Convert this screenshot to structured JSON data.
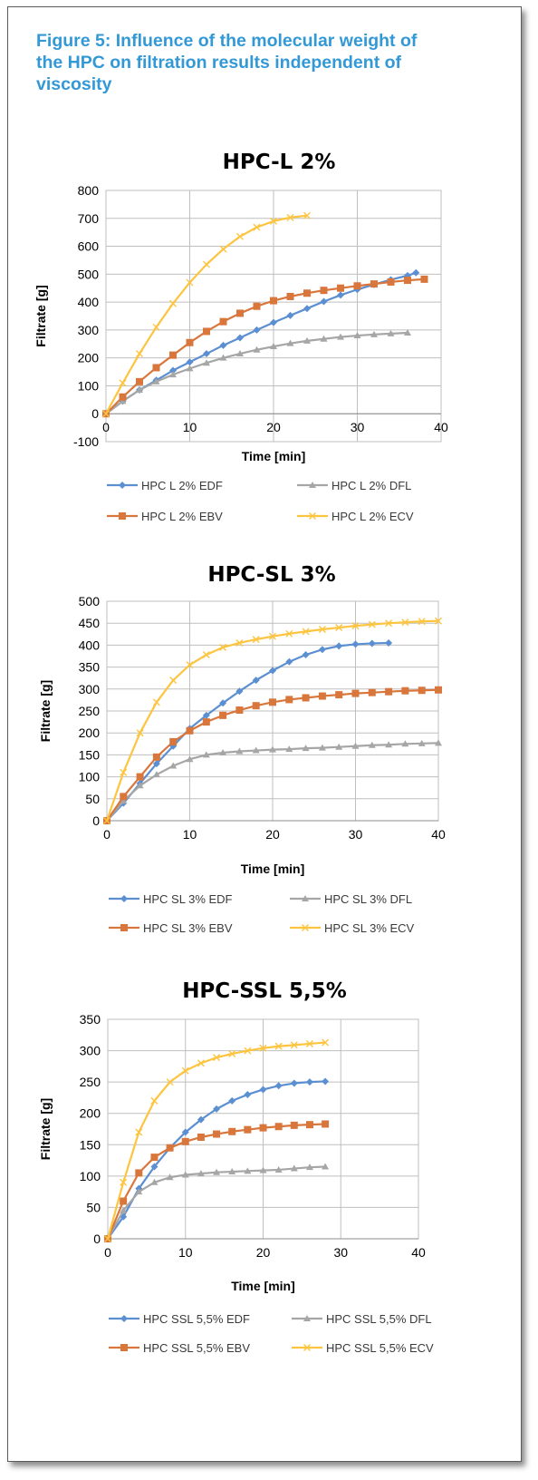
{
  "figure_title": "Figure 5: Influence of the molecular weight of the HPC on filtration results independent of viscosity",
  "colors": {
    "title": "#3399d6",
    "EDF": "#5b8fd2",
    "DFL": "#a6a6a6",
    "EBV": "#d9763c",
    "ECV": "#fdc43f"
  },
  "chart_data": [
    {
      "type": "line",
      "title": "HPC-L 2%",
      "xlabel": "Time [min]",
      "ylabel": "Filtrate [g]",
      "xlim": [
        0,
        40
      ],
      "ylim": [
        -100,
        800
      ],
      "xticks": [
        0,
        10,
        20,
        30,
        40
      ],
      "yticks": [
        -100,
        0,
        100,
        200,
        300,
        400,
        500,
        600,
        700,
        800
      ],
      "grid": true,
      "legend_position": "bottom",
      "series": [
        {
          "name": "HPC L 2% EDF",
          "marker": "diamond",
          "color": "#5b8fd2",
          "x": [
            0,
            2,
            4,
            6,
            8,
            10,
            12,
            14,
            16,
            18,
            20,
            22,
            24,
            26,
            28,
            30,
            32,
            34,
            36,
            37
          ],
          "y": [
            0,
            45,
            85,
            120,
            155,
            185,
            215,
            245,
            272,
            300,
            327,
            352,
            377,
            402,
            425,
            445,
            463,
            480,
            495,
            505
          ]
        },
        {
          "name": "HPC L 2% DFL",
          "marker": "triangle",
          "color": "#a6a6a6",
          "x": [
            0,
            2,
            4,
            6,
            8,
            10,
            12,
            14,
            16,
            18,
            20,
            22,
            24,
            26,
            28,
            30,
            32,
            34,
            36
          ],
          "y": [
            0,
            45,
            85,
            115,
            140,
            162,
            182,
            200,
            215,
            229,
            241,
            252,
            261,
            268,
            275,
            280,
            284,
            287,
            290
          ]
        },
        {
          "name": "HPC L 2% EBV",
          "marker": "square",
          "color": "#d9763c",
          "x": [
            0,
            2,
            4,
            6,
            8,
            10,
            12,
            14,
            16,
            18,
            20,
            22,
            24,
            26,
            28,
            30,
            32,
            34,
            36,
            38
          ],
          "y": [
            0,
            60,
            115,
            165,
            210,
            255,
            295,
            330,
            360,
            385,
            405,
            420,
            432,
            442,
            450,
            458,
            465,
            472,
            478,
            482
          ]
        },
        {
          "name": "HPC L 2% ECV",
          "marker": "x",
          "color": "#fdc43f",
          "x": [
            0,
            2,
            4,
            6,
            8,
            10,
            12,
            14,
            16,
            18,
            20,
            22,
            24
          ],
          "y": [
            0,
            110,
            215,
            310,
            395,
            470,
            535,
            590,
            635,
            668,
            690,
            703,
            710
          ]
        }
      ]
    },
    {
      "type": "line",
      "title": "HPC-SL 3%",
      "xlabel": "Time [min]",
      "ylabel": "Filtrate [g]",
      "xlim": [
        0,
        40
      ],
      "ylim": [
        0,
        500
      ],
      "xticks": [
        0,
        10,
        20,
        30,
        40
      ],
      "yticks": [
        0,
        50,
        100,
        150,
        200,
        250,
        300,
        350,
        400,
        450,
        500
      ],
      "grid": true,
      "legend_position": "bottom",
      "series": [
        {
          "name": "HPC SL 3% EDF",
          "marker": "diamond",
          "color": "#5b8fd2",
          "x": [
            0,
            2,
            4,
            6,
            8,
            10,
            12,
            14,
            16,
            18,
            20,
            22,
            24,
            26,
            28,
            30,
            32,
            34
          ],
          "y": [
            0,
            40,
            85,
            130,
            170,
            210,
            240,
            268,
            295,
            320,
            342,
            362,
            378,
            390,
            398,
            402,
            404,
            405
          ]
        },
        {
          "name": "HPC SL 3% DFL",
          "marker": "triangle",
          "color": "#a6a6a6",
          "x": [
            0,
            2,
            4,
            6,
            8,
            10,
            12,
            14,
            16,
            18,
            20,
            22,
            24,
            26,
            28,
            30,
            32,
            34,
            36,
            38,
            40
          ],
          "y": [
            0,
            45,
            80,
            105,
            125,
            140,
            150,
            155,
            158,
            160,
            162,
            163,
            165,
            166,
            168,
            170,
            172,
            173,
            175,
            176,
            177
          ]
        },
        {
          "name": "HPC SL 3% EBV",
          "marker": "square",
          "color": "#d9763c",
          "x": [
            0,
            2,
            4,
            6,
            8,
            10,
            12,
            14,
            16,
            18,
            20,
            22,
            24,
            26,
            28,
            30,
            32,
            34,
            36,
            38,
            40
          ],
          "y": [
            0,
            55,
            100,
            145,
            180,
            205,
            225,
            240,
            252,
            262,
            270,
            276,
            280,
            284,
            287,
            290,
            292,
            294,
            296,
            297,
            298
          ]
        },
        {
          "name": "HPC SL 3% ECV",
          "marker": "x",
          "color": "#fdc43f",
          "x": [
            0,
            2,
            4,
            6,
            8,
            10,
            12,
            14,
            16,
            18,
            20,
            22,
            24,
            26,
            28,
            30,
            32,
            34,
            36,
            38,
            40
          ],
          "y": [
            0,
            110,
            200,
            270,
            320,
            355,
            378,
            395,
            405,
            413,
            420,
            426,
            431,
            436,
            440,
            444,
            447,
            450,
            452,
            454,
            455
          ]
        }
      ]
    },
    {
      "type": "line",
      "title": "HPC-SSL 5,5%",
      "xlabel": "Time [min]",
      "ylabel": "Filtrate [g]",
      "xlim": [
        0,
        40
      ],
      "ylim": [
        0,
        350
      ],
      "xticks": [
        0,
        10,
        20,
        30,
        40
      ],
      "yticks": [
        0,
        50,
        100,
        150,
        200,
        250,
        300,
        350
      ],
      "grid": true,
      "legend_position": "bottom",
      "series": [
        {
          "name": "HPC SSL 5,5% EDF",
          "marker": "diamond",
          "color": "#5b8fd2",
          "x": [
            0,
            2,
            4,
            6,
            8,
            10,
            12,
            14,
            16,
            18,
            20,
            22,
            24,
            26,
            28
          ],
          "y": [
            0,
            35,
            80,
            115,
            145,
            170,
            190,
            207,
            220,
            230,
            238,
            244,
            248,
            250,
            251
          ]
        },
        {
          "name": "HPC SSL 5,5% DFL",
          "marker": "triangle",
          "color": "#a6a6a6",
          "x": [
            0,
            2,
            4,
            6,
            8,
            10,
            12,
            14,
            16,
            18,
            20,
            22,
            24,
            26,
            28
          ],
          "y": [
            0,
            45,
            75,
            90,
            98,
            102,
            104,
            106,
            107,
            108,
            109,
            110,
            112,
            114,
            115
          ]
        },
        {
          "name": "HPC SSL 5,5% EBV",
          "marker": "square",
          "color": "#d9763c",
          "x": [
            0,
            2,
            4,
            6,
            8,
            10,
            12,
            14,
            16,
            18,
            20,
            22,
            24,
            26,
            28
          ],
          "y": [
            0,
            60,
            105,
            130,
            145,
            155,
            162,
            167,
            171,
            174,
            177,
            179,
            181,
            182,
            183
          ]
        },
        {
          "name": "HPC SSL 5,5% ECV",
          "marker": "x",
          "color": "#fdc43f",
          "x": [
            0,
            2,
            4,
            6,
            8,
            10,
            12,
            14,
            16,
            18,
            20,
            22,
            24,
            26,
            28
          ],
          "y": [
            0,
            90,
            170,
            220,
            250,
            268,
            280,
            289,
            295,
            300,
            304,
            307,
            309,
            311,
            313
          ]
        }
      ]
    }
  ]
}
